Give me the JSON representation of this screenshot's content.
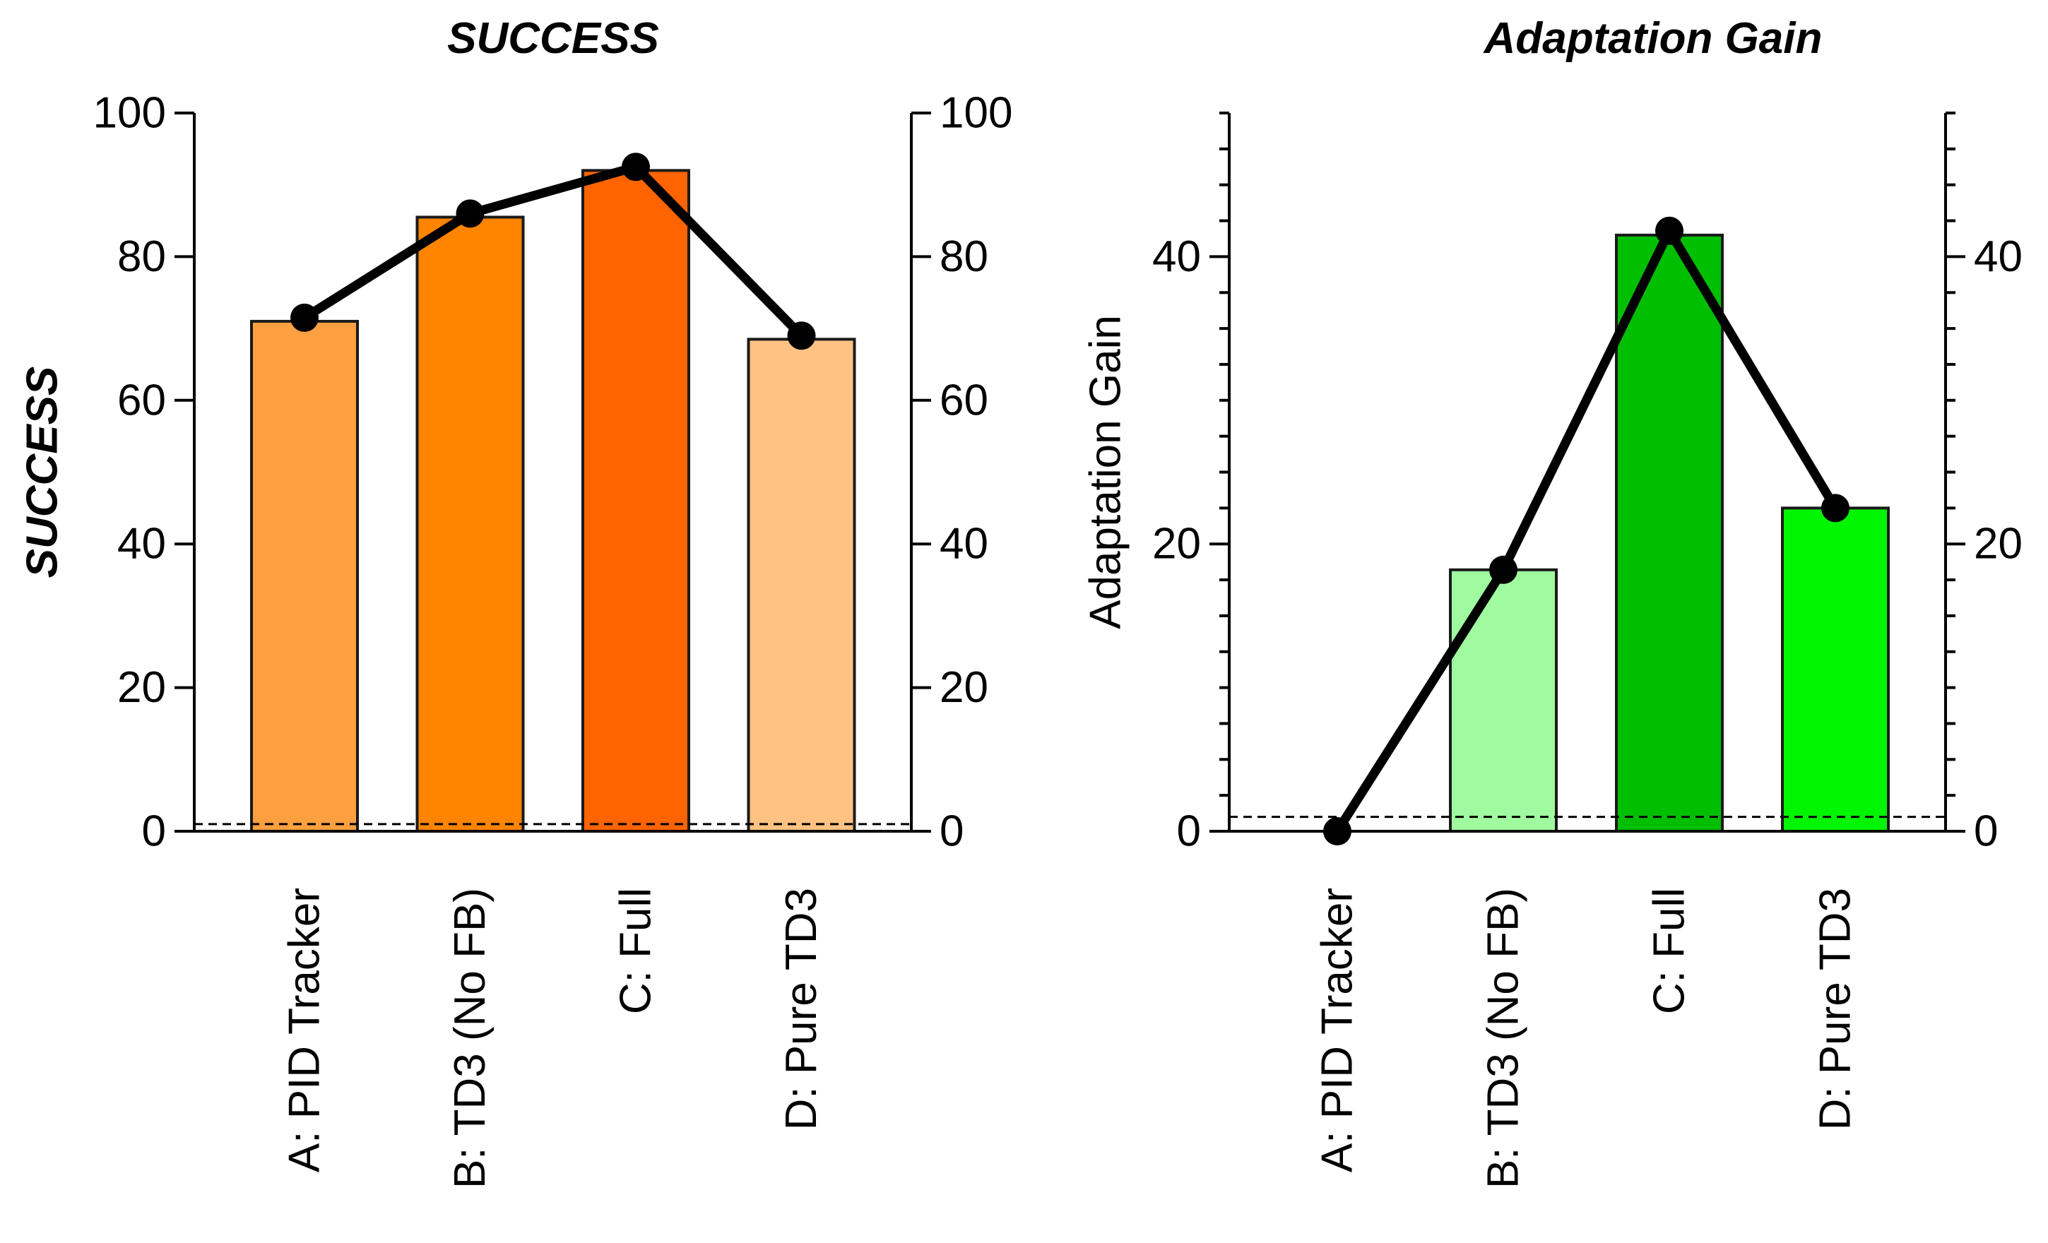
{
  "chart_data": [
    {
      "type": "bar",
      "title": "SUCCESS",
      "ylabel": "SUCCESS",
      "ylabel_style": "bold-italic",
      "xlabel": "",
      "ylim": [
        0,
        100
      ],
      "y_ticks": [
        0,
        20,
        40,
        60,
        80,
        100
      ],
      "y_minor_ticks": [],
      "right_axis": true,
      "categories": [
        "A: PID Tracker",
        "B: TD3 (No FB)",
        "C: Full",
        "D: Pure TD3"
      ],
      "series": [
        {
          "name": "bars",
          "kind": "bar",
          "values": [
            71,
            85.5,
            92,
            68.5
          ]
        },
        {
          "name": "line",
          "kind": "line",
          "values": [
            71.5,
            86,
            92.5,
            69
          ]
        }
      ],
      "bar_colors": [
        "#FFA040",
        "#FF8400",
        "#FF6400",
        "#FFC283"
      ],
      "reference_line": {
        "y": 1,
        "style": "dashed"
      }
    },
    {
      "type": "bar",
      "title": "Adaptation Gain",
      "ylabel": "Adaptation Gain",
      "ylabel_style": "plain",
      "xlabel": "",
      "ylim": [
        0,
        50
      ],
      "y_ticks": [
        0,
        20,
        40
      ],
      "y_minor_ticks": [
        2.5,
        5,
        7.5,
        10,
        12.5,
        15,
        17.5,
        22.5,
        25,
        27.5,
        30,
        32.5,
        35,
        37.5,
        42.5,
        45,
        47.5,
        50
      ],
      "right_axis": true,
      "categories": [
        "A: PID Tracker",
        "B: TD3 (No FB)",
        "C: Full",
        "D: Pure TD3"
      ],
      "series": [
        {
          "name": "bars",
          "kind": "bar",
          "values": [
            0,
            18.2,
            41.5,
            22.5
          ]
        },
        {
          "name": "line",
          "kind": "line",
          "values": [
            0,
            18.2,
            41.8,
            22.5
          ]
        }
      ],
      "bar_colors": [
        "#FFFFFF",
        "#A0FBA0",
        "#00BF00",
        "#00F500"
      ],
      "reference_line": {
        "y": 1,
        "style": "dashed"
      }
    }
  ]
}
